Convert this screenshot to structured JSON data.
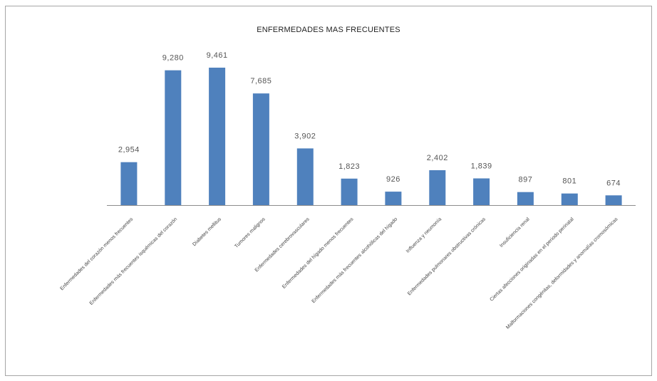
{
  "chart_data": {
    "type": "bar",
    "title": "ENFERMEDADES MAS FRECUENTES",
    "xlabel": "",
    "ylabel": "",
    "ylim": [
      0,
      10000
    ],
    "grid": false,
    "legend": "none",
    "bar_color": "#4f81bd",
    "categories": [
      "Enfermedades del corazón menos frecuentes",
      "Enfermedades más frecuentes isquémicas del corazón",
      "Diabetes mellitus",
      "Tumores malignos",
      "Enfermedades cerebrovasculares",
      "Enfermedades del hígado menos frecuentes",
      "Enfermedades más frecuentes alcohólicas del hígado",
      "Influenza y neumonía",
      "Enfermedades pulmonares obstructivas crónicas",
      "Insuficiencia renal",
      "Ciertas afecciones originadas en el periodo perinatal",
      "Malformaciones congénitas, deformidades y anomalías cromosómicas"
    ],
    "values": [
      2954,
      9280,
      9461,
      7685,
      3902,
      1823,
      926,
      2402,
      1839,
      897,
      801,
      674
    ],
    "value_labels": [
      "2,954",
      "9,280",
      "9,461",
      "7,685",
      "3,902",
      "1,823",
      "926",
      "2,402",
      "1,839",
      "897",
      "801",
      "674"
    ]
  }
}
